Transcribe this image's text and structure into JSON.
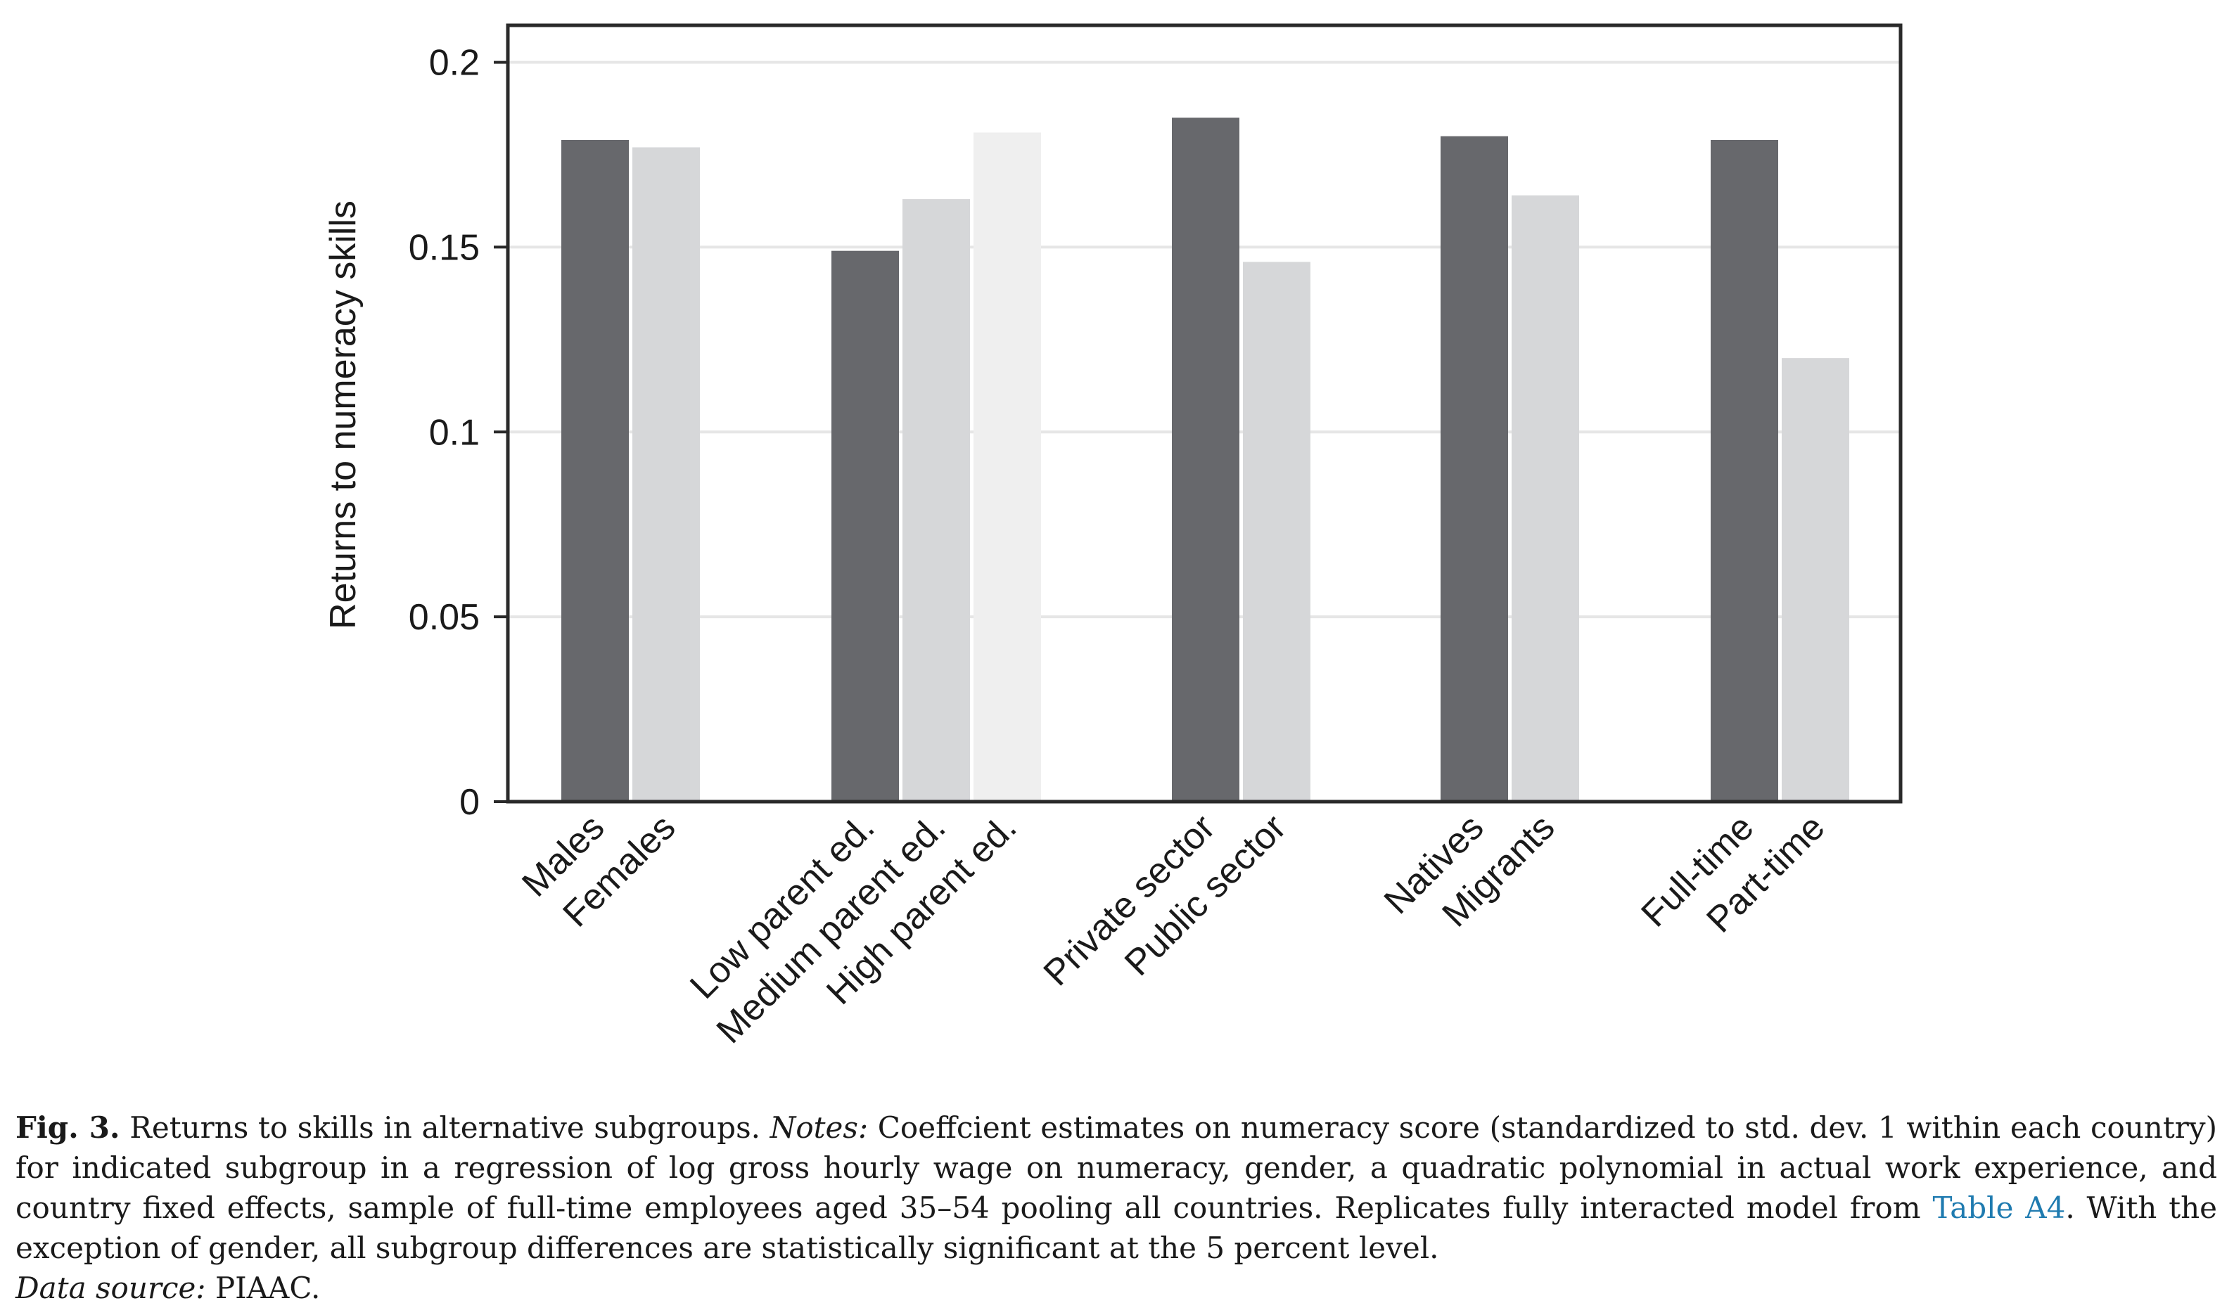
{
  "chart_data": {
    "type": "bar",
    "ylabel": "Returns to numeracy skills",
    "ylim": [
      0,
      0.21
    ],
    "yticks": [
      0,
      0.05,
      0.1,
      0.15,
      0.2
    ],
    "ytick_labels": [
      "0",
      "0.05",
      "0.1",
      "0.15",
      "0.2"
    ],
    "grid": true,
    "colors": {
      "dark": "#67686c",
      "light": "#d6d7d9",
      "lighter": "#efefef",
      "grid": "#e6e6e6"
    },
    "groups": [
      {
        "bars": [
          {
            "label": "Males",
            "value": 0.179,
            "shade": "dark"
          },
          {
            "label": "Females",
            "value": 0.177,
            "shade": "light"
          }
        ]
      },
      {
        "bars": [
          {
            "label": "Low parent ed.",
            "value": 0.149,
            "shade": "dark"
          },
          {
            "label": "Medium parent ed.",
            "value": 0.163,
            "shade": "light"
          },
          {
            "label": "High parent ed.",
            "value": 0.181,
            "shade": "lighter"
          }
        ]
      },
      {
        "bars": [
          {
            "label": "Private sector",
            "value": 0.185,
            "shade": "dark"
          },
          {
            "label": "Public sector",
            "value": 0.146,
            "shade": "light"
          }
        ]
      },
      {
        "bars": [
          {
            "label": "Natives",
            "value": 0.18,
            "shade": "dark"
          },
          {
            "label": "Migrants",
            "value": 0.164,
            "shade": "light"
          }
        ]
      },
      {
        "bars": [
          {
            "label": "Full-time",
            "value": 0.179,
            "shade": "dark"
          },
          {
            "label": "Part-time",
            "value": 0.12,
            "shade": "light"
          }
        ]
      }
    ]
  },
  "caption": {
    "fig_label": "Fig. 3.",
    "title": " Returns to skills in alternative subgroups. ",
    "notes_label": "Notes:",
    "notes_text_1": " Coeffcient estimates on numeracy score (standardized to std. dev. 1 within each country) for indicated subgroup in a regression of log gross hourly wage on numeracy, gender, a quadratic polynomial in actual work experience, and country fixed effects, sample of full-time employees aged 35–54 pooling all countries. Replicates fully interacted model from ",
    "link_text": "Table A4",
    "notes_text_2": ". With the exception of gender, all subgroup differences are statistically significant at the 5 percent level.",
    "source_label": "Data source:",
    "source_text": " PIAAC."
  }
}
